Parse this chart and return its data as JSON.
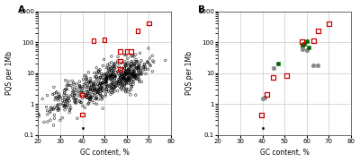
{
  "panel_A": {
    "red_squares": [
      [
        40,
        2.0
      ],
      [
        40,
        0.45
      ],
      [
        45,
        110
      ],
      [
        50,
        120
      ],
      [
        57,
        50
      ],
      [
        57,
        25
      ],
      [
        57,
        13
      ],
      [
        60,
        50
      ],
      [
        62,
        50
      ],
      [
        65,
        230
      ],
      [
        70,
        400
      ]
    ],
    "black_single": [
      [
        40,
        0.17
      ]
    ]
  },
  "panel_B": {
    "grey_circles": [
      [
        40,
        1.5
      ],
      [
        41,
        1.6
      ],
      [
        45,
        15
      ],
      [
        58,
        60
      ],
      [
        58,
        70
      ],
      [
        60,
        55
      ],
      [
        63,
        18
      ],
      [
        65,
        18
      ]
    ],
    "green_squares": [
      [
        47,
        20
      ],
      [
        58,
        80
      ],
      [
        59,
        90
      ],
      [
        60,
        105
      ],
      [
        61,
        68
      ]
    ],
    "red_squares": [
      [
        39.5,
        0.45
      ],
      [
        42,
        2.0
      ],
      [
        45,
        7
      ],
      [
        51,
        8
      ],
      [
        58,
        105
      ],
      [
        63,
        110
      ],
      [
        65,
        230
      ],
      [
        70,
        400
      ]
    ],
    "black_single": [
      [
        40,
        0.17
      ]
    ]
  },
  "xlim": [
    20,
    80
  ],
  "ylim": [
    0.1,
    1000
  ],
  "xlabel": "GC content, %",
  "ylabel": "PQS per 1Mb",
  "xticks": [
    20,
    30,
    40,
    50,
    60,
    70,
    80
  ],
  "yticks": [
    0.1,
    1,
    10,
    100,
    1000
  ],
  "background_color": "#ffffff",
  "grid_color": "#bbbbbb",
  "red_color": "#cc0000",
  "grey_color": "#888888",
  "green_color": "#006600",
  "scatter_seed": 12345,
  "scatter_params": {
    "low_gc_n": 120,
    "low_gc_mean": 32,
    "low_gc_std": 5,
    "low_pqs_log_mean": 0.4,
    "low_pqs_log_std": 0.6,
    "mid_gc_n": 350,
    "mid_gc_mean": 50,
    "mid_gc_std": 7,
    "mid_pqs_log_mean": 1.6,
    "mid_pqs_log_std": 0.65,
    "high_gc_n": 200,
    "high_gc_mean": 62,
    "high_gc_std": 4,
    "high_pqs_log_mean": 2.2,
    "high_pqs_log_std": 0.5,
    "slope_factor": 0.08
  }
}
